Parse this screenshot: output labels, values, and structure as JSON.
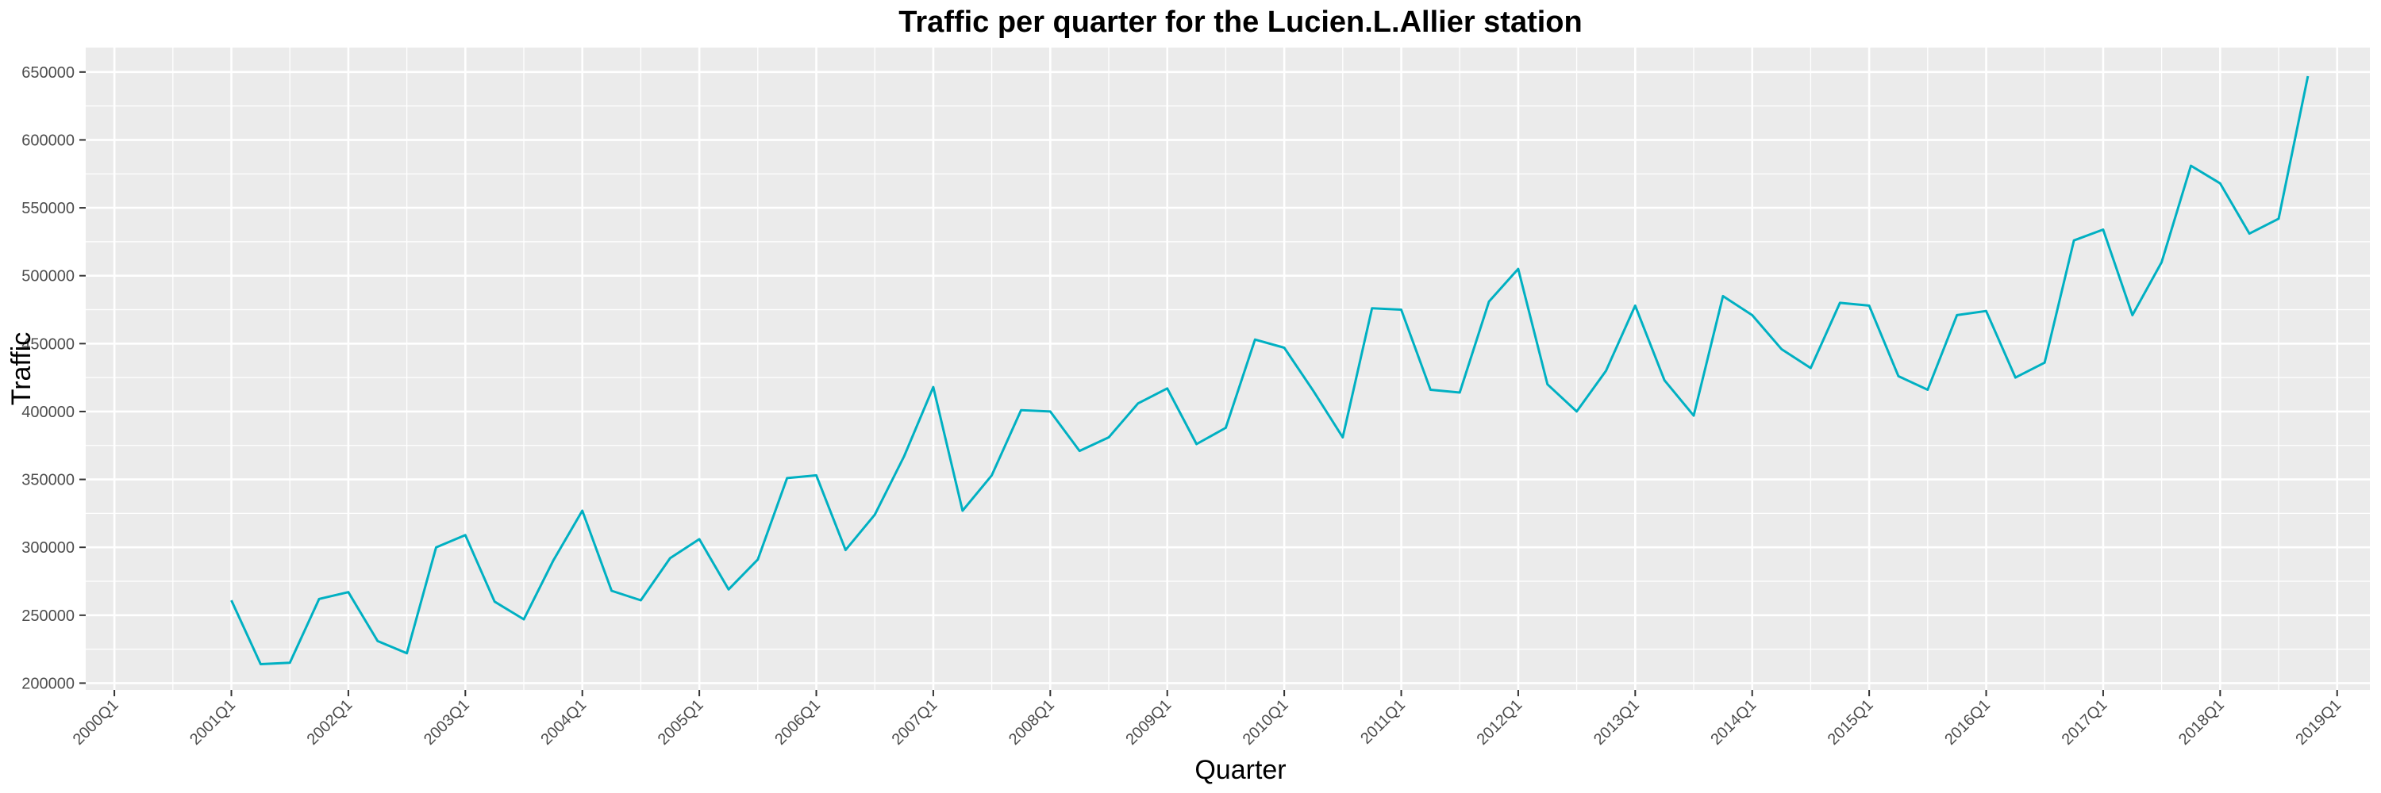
{
  "chart_data": {
    "type": "line",
    "title": "Traffic per quarter for the Lucien.L.Allier station",
    "xlabel": "Quarter",
    "ylabel": "Traffic",
    "x_tick_labels": [
      "2000Q1",
      "2001Q1",
      "2002Q1",
      "2003Q1",
      "2004Q1",
      "2005Q1",
      "2006Q1",
      "2007Q1",
      "2008Q1",
      "2009Q1",
      "2010Q1",
      "2011Q1",
      "2012Q1",
      "2013Q1",
      "2014Q1",
      "2015Q1",
      "2016Q1",
      "2017Q1",
      "2018Q1",
      "2019Q1"
    ],
    "y_tick_labels": [
      "200000",
      "250000",
      "300000",
      "350000",
      "400000",
      "450000",
      "500000",
      "550000",
      "600000",
      "650000"
    ],
    "y_ticks": [
      200000,
      250000,
      300000,
      350000,
      400000,
      450000,
      500000,
      550000,
      600000,
      650000
    ],
    "ylim": [
      195000,
      668000
    ],
    "xlim": [
      "2000Q1",
      "2019Q2"
    ],
    "grid": true,
    "legend": "none",
    "colors": {
      "panel": "#ebebeb",
      "grid": "#ffffff",
      "line": "#00b0c2",
      "tick_text": "#4d4d4d"
    },
    "series": [
      {
        "x": [
          "2001Q1",
          "2001Q2",
          "2001Q3",
          "2001Q4",
          "2002Q1",
          "2002Q2",
          "2002Q3",
          "2002Q4",
          "2003Q1",
          "2003Q2",
          "2003Q3",
          "2003Q4",
          "2004Q1",
          "2004Q2",
          "2004Q3",
          "2004Q4",
          "2005Q1",
          "2005Q2",
          "2005Q3",
          "2005Q4",
          "2006Q1",
          "2006Q2",
          "2006Q3",
          "2006Q4",
          "2007Q1",
          "2007Q2",
          "2007Q3",
          "2007Q4",
          "2008Q1",
          "2008Q2",
          "2008Q3",
          "2008Q4",
          "2009Q1",
          "2009Q2",
          "2009Q3",
          "2009Q4",
          "2010Q1",
          "2010Q2",
          "2010Q3",
          "2010Q4",
          "2011Q1",
          "2011Q2",
          "2011Q3",
          "2011Q4",
          "2012Q1",
          "2012Q2",
          "2012Q3",
          "2012Q4",
          "2013Q1",
          "2013Q2",
          "2013Q3",
          "2013Q4",
          "2014Q1",
          "2014Q2",
          "2014Q3",
          "2014Q4",
          "2015Q1",
          "2015Q2",
          "2015Q3",
          "2015Q4",
          "2016Q1",
          "2016Q2",
          "2016Q3",
          "2016Q4",
          "2017Q1",
          "2017Q2",
          "2017Q3",
          "2017Q4",
          "2018Q1",
          "2018Q2",
          "2018Q3",
          "2018Q4"
        ],
        "values": [
          261000,
          214000,
          215000,
          262000,
          267000,
          231000,
          222000,
          300000,
          309000,
          260000,
          247000,
          290000,
          327000,
          268000,
          261000,
          292000,
          306000,
          269000,
          291000,
          351000,
          353000,
          298000,
          324000,
          367000,
          418000,
          327000,
          353000,
          401000,
          400000,
          371000,
          381000,
          406000,
          417000,
          376000,
          388000,
          453000,
          447000,
          415000,
          381000,
          476000,
          475000,
          416000,
          414000,
          481000,
          505000,
          420000,
          400000,
          430000,
          478000,
          423000,
          397000,
          485000,
          471000,
          446000,
          432000,
          480000,
          478000,
          426000,
          416000,
          471000,
          474000,
          425000,
          436000,
          526000,
          534000,
          471000,
          510000,
          581000,
          568000,
          531000,
          542000,
          647000
        ]
      }
    ]
  }
}
